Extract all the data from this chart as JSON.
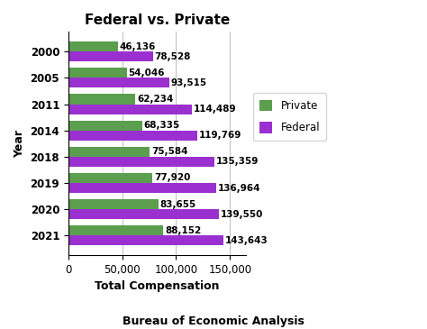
{
  "title": "Federal vs. Private",
  "xlabel": "Total Compensation",
  "ylabel": "Year",
  "subtitle": "Bureau of Economic Analysis",
  "years": [
    "2021",
    "2020",
    "2019",
    "2018",
    "2014",
    "2011",
    "2005",
    "2000"
  ],
  "private_values": [
    88152,
    83655,
    77920,
    75584,
    68335,
    62234,
    54046,
    46136
  ],
  "federal_values": [
    143643,
    139550,
    136964,
    135359,
    119769,
    114489,
    93515,
    78528
  ],
  "private_color": "#5a9e4e",
  "federal_color": "#9b30d0",
  "bar_height": 0.38,
  "xlim": [
    0,
    165000
  ],
  "xticks": [
    0,
    50000,
    100000,
    150000
  ],
  "xtick_labels": [
    "0",
    "50,000",
    "100,000",
    "150,000"
  ],
  "legend_labels": [
    "Private",
    "Federal"
  ],
  "title_fontsize": 11,
  "label_fontsize": 9,
  "tick_fontsize": 8.5,
  "annotation_fontsize": 7.5,
  "background_color": "#ffffff"
}
